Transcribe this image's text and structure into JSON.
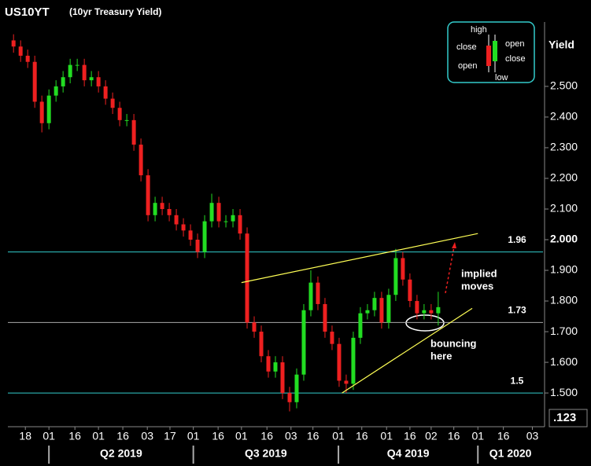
{
  "chart_data": {
    "type": "candlestick",
    "title": "US10YT",
    "subtitle": "(10yr Treasury Yield)",
    "y_label": "Yield",
    "corner_label": ".123",
    "up_color": "#22dd22",
    "down_color": "#ee2020",
    "ylim": [
      1.39,
      2.71
    ],
    "yticks": [
      {
        "value": 1.5,
        "label": "1.500"
      },
      {
        "value": 1.6,
        "label": "1.600"
      },
      {
        "value": 1.7,
        "label": "1.700"
      },
      {
        "value": 1.8,
        "label": "1.800"
      },
      {
        "value": 1.9,
        "label": "1.900"
      },
      {
        "value": 2.0,
        "label": "2.000"
      },
      {
        "value": 2.1,
        "label": "2.100"
      },
      {
        "value": 2.2,
        "label": "2.200"
      },
      {
        "value": 2.3,
        "label": "2.300"
      },
      {
        "value": 2.4,
        "label": "2.400"
      },
      {
        "value": 2.5,
        "label": "2.500"
      }
    ],
    "emphasized_ytick": 2.0,
    "xlim": [
      -0.8,
      74.8
    ],
    "xticks": [
      {
        "value": 1.67,
        "label": "18"
      },
      {
        "value": 5,
        "label": "01"
      },
      {
        "value": 8.67,
        "label": "16"
      },
      {
        "value": 12,
        "label": "01"
      },
      {
        "value": 15.44,
        "label": "16"
      },
      {
        "value": 18.9,
        "label": "03"
      },
      {
        "value": 22.1,
        "label": "17"
      },
      {
        "value": 25.4,
        "label": "01"
      },
      {
        "value": 28.9,
        "label": "16"
      },
      {
        "value": 32.2,
        "label": "01"
      },
      {
        "value": 35.8,
        "label": "16"
      },
      {
        "value": 39.2,
        "label": "03"
      },
      {
        "value": 42.3,
        "label": "16"
      },
      {
        "value": 45.9,
        "label": "01"
      },
      {
        "value": 49.2,
        "label": "16"
      },
      {
        "value": 52.7,
        "label": "01"
      },
      {
        "value": 56,
        "label": "16"
      },
      {
        "value": 59,
        "label": "02"
      },
      {
        "value": 62.2,
        "label": "16"
      },
      {
        "value": 65.6,
        "label": "01"
      },
      {
        "value": 69.2,
        "label": "16"
      },
      {
        "value": 73.3,
        "label": "03"
      }
    ],
    "quarters": [
      {
        "label": "Q2 2019",
        "start": 5,
        "end": 25.4
      },
      {
        "label": "Q3 2019",
        "start": 25.4,
        "end": 45.9
      },
      {
        "label": "Q4 2019",
        "start": 45.9,
        "end": 65.6
      },
      {
        "label": "Q1 2020",
        "start": 65.6,
        "end": 74.8
      }
    ],
    "ohlc": {
      "open": [
        2.65,
        2.63,
        2.6,
        2.58,
        2.45,
        2.38,
        2.47,
        2.5,
        2.53,
        2.57,
        2.57,
        2.52,
        2.53,
        2.5,
        2.46,
        2.43,
        2.39,
        2.39,
        2.31,
        2.21,
        2.08,
        2.12,
        2.1,
        2.08,
        2.05,
        2.03,
        2.0,
        1.96,
        2.06,
        2.12,
        2.06,
        2.06,
        2.08,
        2.02,
        1.73,
        1.7,
        1.62,
        1.57,
        1.6,
        1.5,
        1.47,
        1.56,
        1.77,
        1.86,
        1.79,
        1.7,
        1.66,
        1.54,
        1.53,
        1.68,
        1.76,
        1.77,
        1.81,
        1.73,
        1.82,
        1.94,
        1.87,
        1.8,
        1.76,
        1.77,
        1.76
      ],
      "high": [
        2.67,
        2.65,
        2.62,
        2.6,
        2.47,
        2.49,
        2.52,
        2.55,
        2.59,
        2.59,
        2.59,
        2.55,
        2.55,
        2.52,
        2.48,
        2.45,
        2.41,
        2.41,
        2.33,
        2.23,
        2.14,
        2.14,
        2.12,
        2.1,
        2.07,
        2.05,
        2.02,
        2.08,
        2.15,
        2.14,
        2.08,
        2.1,
        2.1,
        2.04,
        1.75,
        1.72,
        1.64,
        1.62,
        1.62,
        1.52,
        1.58,
        1.79,
        1.9,
        1.88,
        1.81,
        1.72,
        1.68,
        1.56,
        1.7,
        1.78,
        1.79,
        1.83,
        1.83,
        1.84,
        1.97,
        1.96,
        1.89,
        1.82,
        1.79,
        1.79,
        1.83
      ],
      "low": [
        2.61,
        2.58,
        2.56,
        2.43,
        2.35,
        2.36,
        2.45,
        2.48,
        2.51,
        2.55,
        2.5,
        2.5,
        2.48,
        2.44,
        2.41,
        2.37,
        2.37,
        2.29,
        2.19,
        2.06,
        2.06,
        2.08,
        2.06,
        2.03,
        2.01,
        1.98,
        1.94,
        1.94,
        2.04,
        2.04,
        2.04,
        2.04,
        2.0,
        1.71,
        1.68,
        1.6,
        1.55,
        1.55,
        1.48,
        1.44,
        1.45,
        1.54,
        1.75,
        1.77,
        1.68,
        1.64,
        1.52,
        1.5,
        1.51,
        1.66,
        1.74,
        1.75,
        1.71,
        1.71,
        1.8,
        1.85,
        1.78,
        1.74,
        1.74,
        1.74,
        1.72
      ],
      "close": [
        2.63,
        2.6,
        2.58,
        2.45,
        2.38,
        2.47,
        2.5,
        2.53,
        2.57,
        2.57,
        2.52,
        2.53,
        2.5,
        2.46,
        2.43,
        2.39,
        2.39,
        2.31,
        2.21,
        2.08,
        2.12,
        2.1,
        2.08,
        2.05,
        2.03,
        2.0,
        1.96,
        2.06,
        2.12,
        2.06,
        2.06,
        2.08,
        2.02,
        1.73,
        1.7,
        1.62,
        1.57,
        1.6,
        1.5,
        1.47,
        1.56,
        1.77,
        1.86,
        1.79,
        1.7,
        1.66,
        1.54,
        1.53,
        1.68,
        1.76,
        1.77,
        1.81,
        1.73,
        1.82,
        1.94,
        1.87,
        1.8,
        1.76,
        1.77,
        1.76,
        1.78
      ]
    },
    "levels": [
      {
        "value": 1.96,
        "label": "1.96",
        "color": "#33cccc"
      },
      {
        "value": 1.73,
        "label": "1.73",
        "color": "#aaaaaa"
      },
      {
        "value": 1.5,
        "label": "1.5",
        "color": "#33cccc"
      }
    ],
    "trendlines": [
      {
        "color": "#ffff55",
        "x": [
          32.2,
          65.6
        ],
        "y": [
          1.86,
          2.02
        ]
      },
      {
        "color": "#ffff55",
        "x": [
          46.4,
          64.8
        ],
        "y": [
          1.5,
          1.776
        ]
      }
    ],
    "annotations": [
      {
        "lines": [
          "implied",
          "moves"
        ]
      },
      {
        "lines": [
          "bouncing",
          "here"
        ]
      }
    ],
    "legend_key": {
      "high": "high",
      "close_left": "close",
      "open_left": "open",
      "open_right": "open",
      "close_right": "close",
      "low": "low"
    }
  }
}
